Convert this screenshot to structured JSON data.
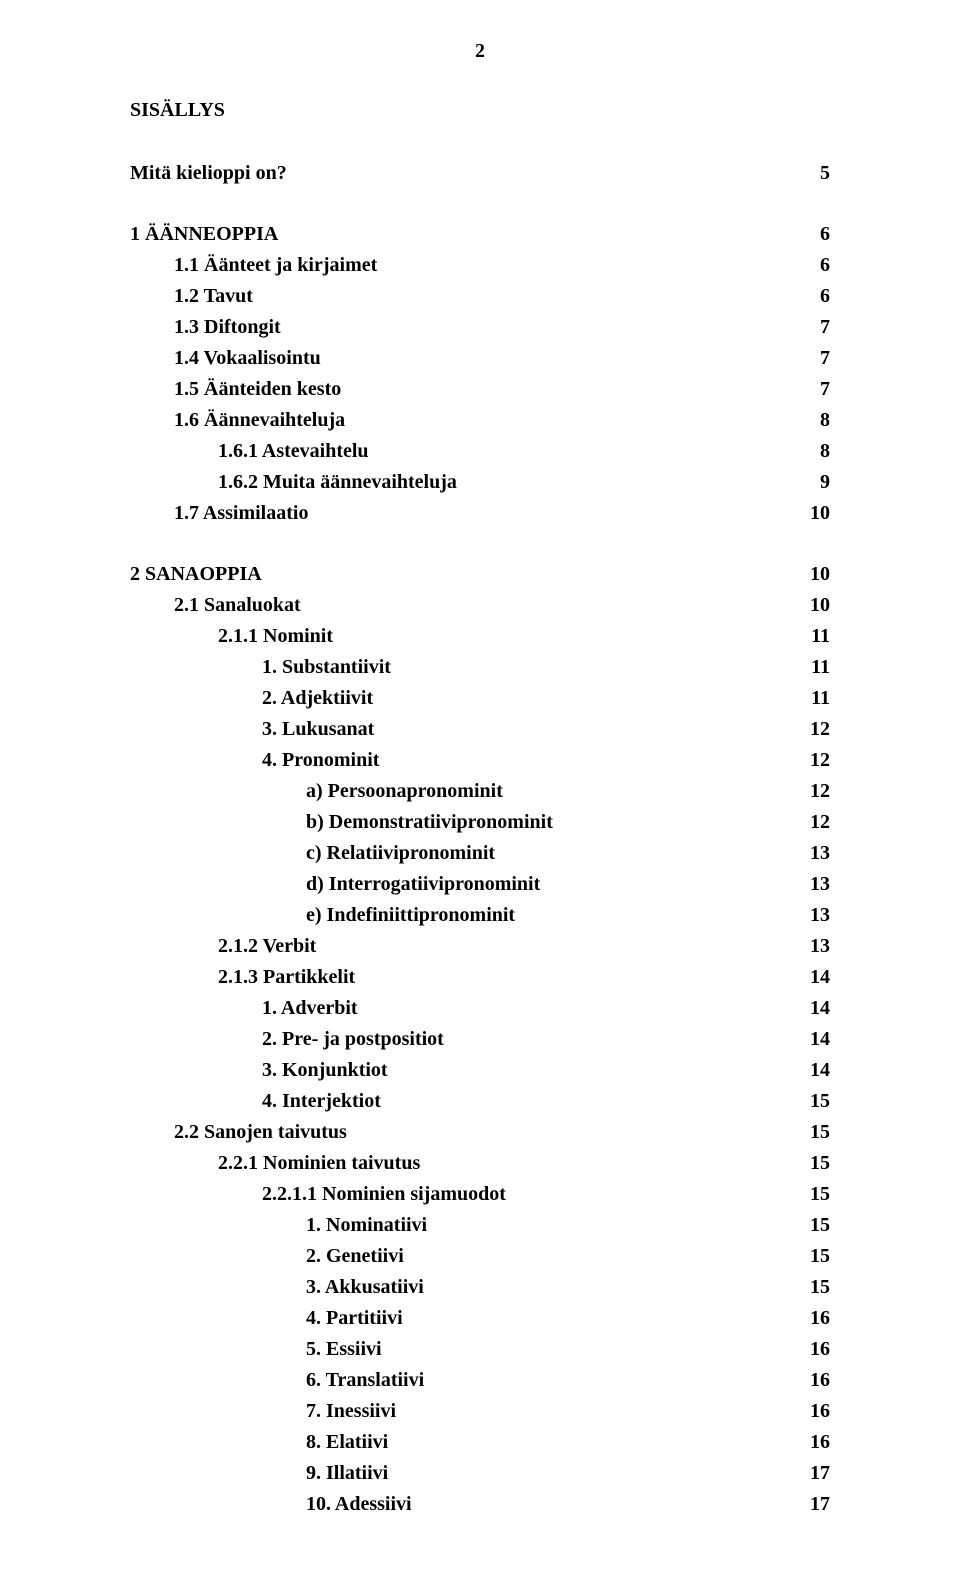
{
  "page_number": "2",
  "title": "SISÄLLYS",
  "entries": [
    {
      "label": "Mitä kielioppi on?",
      "page": "5",
      "indent": 0,
      "gap_after": true
    },
    {
      "label": "1 ÄÄNNEOPPIA",
      "page": "6",
      "indent": 0
    },
    {
      "label": "1.1 Äänteet ja kirjaimet",
      "page": "6",
      "indent": 1
    },
    {
      "label": "1.2 Tavut",
      "page": "6",
      "indent": 1
    },
    {
      "label": "1.3 Diftongit",
      "page": "7",
      "indent": 1
    },
    {
      "label": "1.4 Vokaalisointu",
      "page": "7",
      "indent": 1
    },
    {
      "label": "1.5 Äänteiden kesto",
      "page": "7",
      "indent": 1
    },
    {
      "label": "1.6 Äännevaihteluja",
      "page": "8",
      "indent": 1
    },
    {
      "label": "1.6.1 Astevaihtelu",
      "page": "8",
      "indent": 2
    },
    {
      "label": "1.6.2 Muita äännevaihteluja",
      "page": "9",
      "indent": 2
    },
    {
      "label": "1.7 Assimilaatio",
      "page": "10",
      "indent": 1,
      "gap_after": true
    },
    {
      "label": "2 SANAOPPIA",
      "page": "10",
      "indent": 0
    },
    {
      "label": "2.1 Sanaluokat",
      "page": "10",
      "indent": 1
    },
    {
      "label": "2.1.1 Nominit",
      "page": "11",
      "indent": 2
    },
    {
      "label": "1. Substantiivit",
      "page": "11",
      "indent": 3
    },
    {
      "label": "2. Adjektiivit",
      "page": "11",
      "indent": 3
    },
    {
      "label": "3. Lukusanat",
      "page": "12",
      "indent": 3
    },
    {
      "label": "4. Pronominit",
      "page": "12",
      "indent": 3
    },
    {
      "label": "a) Persoonapronominit",
      "page": "12",
      "indent": 4
    },
    {
      "label": "b) Demonstratiivipronominit",
      "page": "12",
      "indent": 4
    },
    {
      "label": "c) Relatiivipronominit",
      "page": "13",
      "indent": 4
    },
    {
      "label": "d) Interrogatiivipronominit",
      "page": "13",
      "indent": 4
    },
    {
      "label": "e) Indefiniittipronominit",
      "page": "13",
      "indent": 4
    },
    {
      "label": "2.1.2 Verbit",
      "page": "13",
      "indent": 2
    },
    {
      "label": "2.1.3 Partikkelit",
      "page": "14",
      "indent": 2
    },
    {
      "label": "1. Adverbit",
      "page": "14",
      "indent": 3
    },
    {
      "label": "2. Pre- ja postpositiot",
      "page": "14",
      "indent": 3
    },
    {
      "label": "3. Konjunktiot",
      "page": "14",
      "indent": 3
    },
    {
      "label": "4. Interjektiot",
      "page": "15",
      "indent": 3
    },
    {
      "label": "2.2 Sanojen taivutus",
      "page": "15",
      "indent": 1
    },
    {
      "label": "2.2.1 Nominien taivutus",
      "page": "15",
      "indent": 2
    },
    {
      "label": "2.2.1.1 Nominien sijamuodot",
      "page": "15",
      "indent": 3
    },
    {
      "label": "1. Nominatiivi",
      "page": "15",
      "indent": 4
    },
    {
      "label": "2. Genetiivi",
      "page": "15",
      "indent": 4
    },
    {
      "label": "3. Akkusatiivi",
      "page": "15",
      "indent": 4
    },
    {
      "label": "4. Partitiivi",
      "page": "16",
      "indent": 4
    },
    {
      "label": "5. Essiivi",
      "page": "16",
      "indent": 4
    },
    {
      "label": "6. Translatiivi",
      "page": "16",
      "indent": 4
    },
    {
      "label": "7. Inessiivi",
      "page": "16",
      "indent": 4
    },
    {
      "label": "8. Elatiivi",
      "page": "16",
      "indent": 4
    },
    {
      "label": "9. Illatiivi",
      "page": "17",
      "indent": 4
    },
    {
      "label": "10. Adessiivi",
      "page": "17",
      "indent": 4
    }
  ]
}
